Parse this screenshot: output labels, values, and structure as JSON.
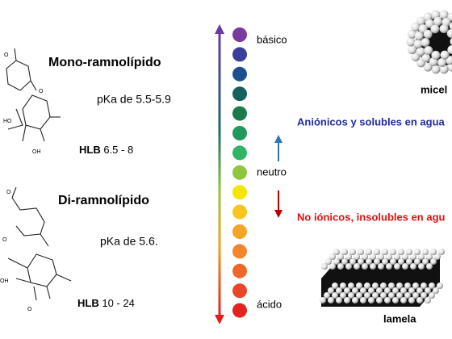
{
  "molecules": [
    {
      "name": "Mono-ramnolípido",
      "pka": "pKa de 5.5-5.9",
      "hlb_label": "HLB",
      "hlb_range": "6.5  -  8"
    },
    {
      "name": "Di-ramnolípido",
      "pka": "pKa de 5.6.",
      "hlb_label": "HLB",
      "hlb_range": "10  -  24"
    }
  ],
  "scale": {
    "top_label": "básico",
    "middle_label": "neutro",
    "bottom_label": "ácido",
    "colors": [
      "#7a3b9e",
      "#3b3f9c",
      "#1d4f8f",
      "#16605e",
      "#1a7a48",
      "#1f9a5c",
      "#2fb568",
      "#8ec63f",
      "#f4e600",
      "#f7c61e",
      "#f6a423",
      "#f3852a",
      "#ef6629",
      "#e94527",
      "#e2231f"
    ]
  },
  "notes": {
    "up": "Aniónicos y solubles en agua",
    "down": "No iónicos, insolubles en agu"
  },
  "structures": {
    "micelle": "micel",
    "lamella": "lamela"
  },
  "atoms": [
    "O",
    "O",
    "HO",
    "OH",
    "O",
    "O",
    "OH",
    "O"
  ]
}
